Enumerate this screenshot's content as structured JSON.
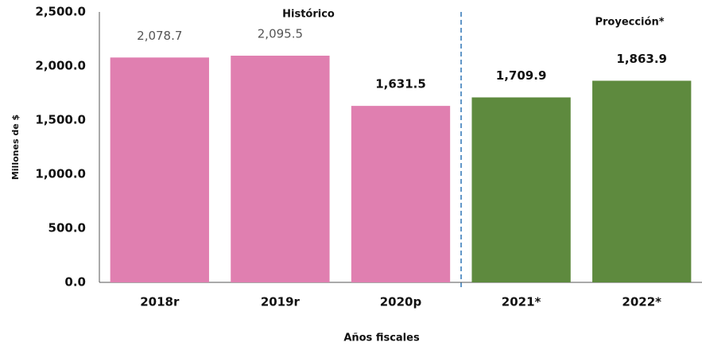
{
  "chart_data": {
    "type": "bar",
    "annotations": [
      "Histórico",
      "Proyección*"
    ],
    "x_label": "Años fiscales",
    "y_label": "Millones de $",
    "categories": [
      "2018r",
      "2019r",
      "2020p",
      "2021*",
      "2022*"
    ],
    "values": [
      2078.7,
      2095.5,
      1631.5,
      1709.9,
      1863.9
    ],
    "value_labels": [
      "2,078.7",
      "2,095.5",
      "1,631.5",
      "1,709.9",
      "1,863.9"
    ],
    "value_label_weights": [
      "normal",
      "normal",
      "bold",
      "bold",
      "bold"
    ],
    "colors": [
      "#e07fb0",
      "#e07fb0",
      "#e07fb0",
      "#5e8a3e",
      "#5e8a3e"
    ],
    "ylim": [
      0,
      2500
    ],
    "yticks": [
      {
        "value": 0,
        "label": "0.0"
      },
      {
        "value": 500,
        "label": "500.0"
      },
      {
        "value": 1000,
        "label": "1,000.0"
      },
      {
        "value": 1500,
        "label": "1,500.0"
      },
      {
        "value": 2000,
        "label": "2,000.0"
      },
      {
        "value": 2500,
        "label": "2,500.0"
      }
    ],
    "grid": false
  }
}
